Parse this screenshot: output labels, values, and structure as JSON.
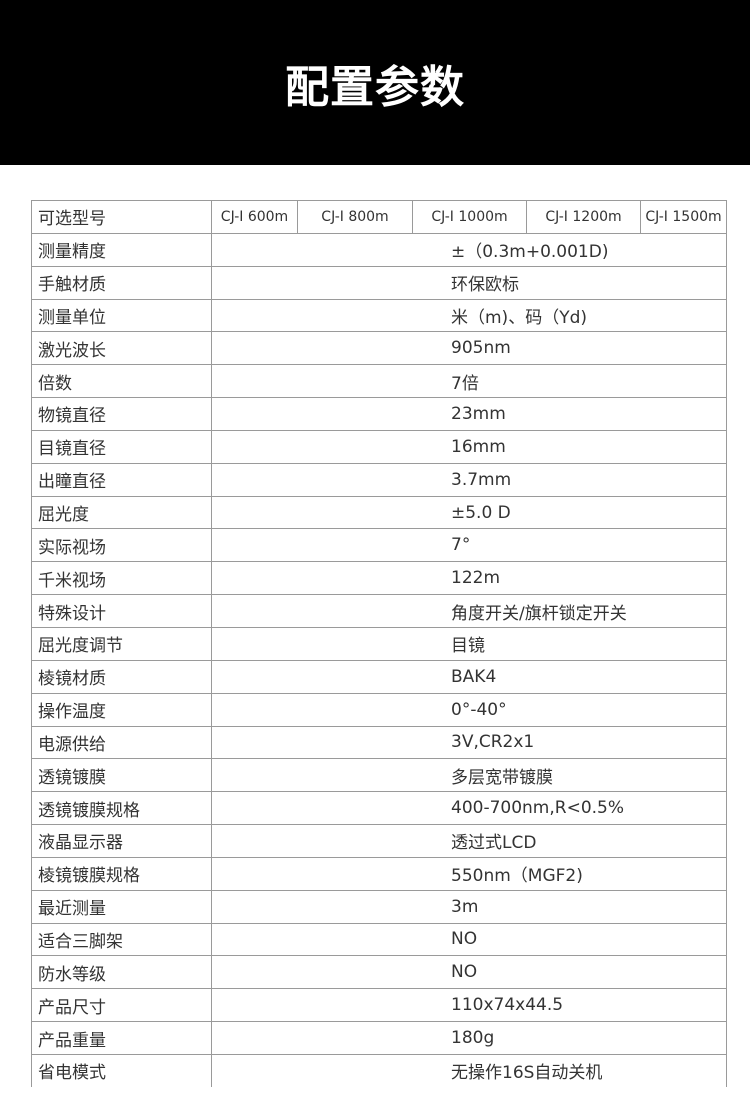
{
  "header": {
    "title": "配置参数"
  },
  "table": {
    "model_label": "可选型号",
    "models": [
      "CJ-I 600m",
      "CJ-I 800m",
      "CJ-I 1000m",
      "CJ-I 1200m",
      "CJ-I 1500m"
    ],
    "rows": [
      {
        "label": "测量精度",
        "value": "±（0.3m+0.001D)"
      },
      {
        "label": "手触材质",
        "value": "环保欧标"
      },
      {
        "label": "测量单位",
        "value": "米（m)、码（Yd)"
      },
      {
        "label": "激光波长",
        "value": "905nm"
      },
      {
        "label": "倍数",
        "value": "7倍"
      },
      {
        "label": "物镜直径",
        "value": "23mm"
      },
      {
        "label": "目镜直径",
        "value": "16mm"
      },
      {
        "label": "出瞳直径",
        "value": "3.7mm"
      },
      {
        "label": "屈光度",
        "value": "±5.0 D"
      },
      {
        "label": "实际视场",
        "value": "7°"
      },
      {
        "label": "千米视场",
        "value": "122m"
      },
      {
        "label": "特殊设计",
        "value": "角度开关/旗杆锁定开关"
      },
      {
        "label": "屈光度调节",
        "value": "目镜"
      },
      {
        "label": "棱镜材质",
        "value": "BAK4"
      },
      {
        "label": "操作温度",
        "value": "0°-40°"
      },
      {
        "label": "电源供给",
        "value": "3V,CR2x1"
      },
      {
        "label": "透镜镀膜",
        "value": "多层宽带镀膜"
      },
      {
        "label": "透镜镀膜规格",
        "value": "400-700nm,R<0.5%"
      },
      {
        "label": "液晶显示器",
        "value": "透过式LCD"
      },
      {
        "label": "棱镜镀膜规格",
        "value": "550nm（MGF2)"
      },
      {
        "label": "最近测量",
        "value": "3m"
      },
      {
        "label": "适合三脚架",
        "value": "NO"
      },
      {
        "label": "防水等级",
        "value": "NO"
      },
      {
        "label": "产品尺寸",
        "value": "110x74x44.5"
      },
      {
        "label": "产品重量",
        "value": "180g"
      },
      {
        "label": "省电模式",
        "value": "无操作16S自动关机"
      }
    ]
  }
}
